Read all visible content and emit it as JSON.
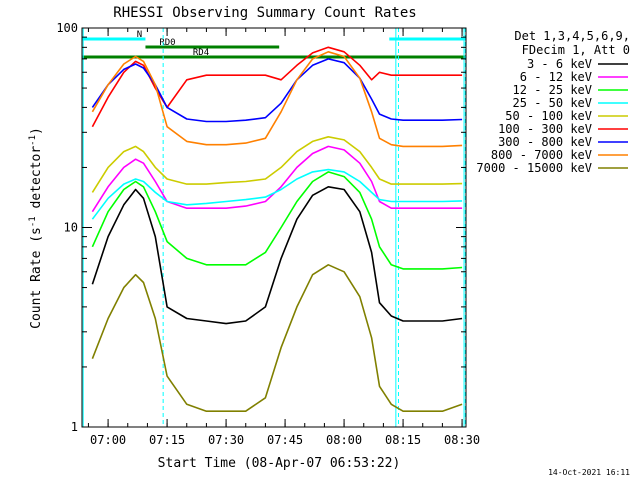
{
  "chart_data": {
    "type": "line",
    "title": "RHESSI Observing Summary Count Rates",
    "xlabel": "Start Time (08-Apr-07 06:53:22)",
    "ylabel_main": "Count Rate (s",
    "ylabel_sup1": "-1",
    "ylabel_mid": " detector",
    "ylabel_sup2": "-1",
    "ylabel_end": ")",
    "y_scale": "log",
    "ylim": [
      1,
      100
    ],
    "xlim": [
      "06:53:22",
      "08:31:00"
    ],
    "x_ticks": [
      "07:00",
      "07:15",
      "07:30",
      "07:45",
      "08:00",
      "08:15",
      "08:30"
    ],
    "y_ticks": [
      "100",
      "10",
      "1"
    ],
    "legend_header": [
      "Det 1,3,4,5,6,9,",
      "FDecim 1, Att 0"
    ],
    "legend_position": "right",
    "timestamp": "14-Oct-2021 16:11",
    "flags": [
      {
        "label": "N",
        "color": "#00ffff",
        "segments": [
          [
            "06:53:22",
            "07:09:30"
          ],
          [
            "08:11:30",
            "08:31:00"
          ]
        ]
      },
      {
        "label": "RD0",
        "color": "#008000",
        "segments": [
          [
            "07:09:30",
            "07:43:30"
          ]
        ]
      },
      {
        "label": "RD4",
        "color": "#008000",
        "segments": [
          [
            "06:53:22",
            "08:31:00"
          ]
        ]
      }
    ],
    "vertical_markers": {
      "night_solid": [
        "06:53:40",
        "08:13:10",
        "08:30:30"
      ],
      "night_dashed": [
        "07:14:00",
        "08:13:50",
        "08:30:50"
      ]
    },
    "series": [
      {
        "name": "3 - 6 keV",
        "color": "#000000",
        "x": [
          "06:56",
          "07:00",
          "07:04",
          "07:07",
          "07:09",
          "07:12",
          "07:15",
          "07:20",
          "07:25",
          "07:30",
          "07:35",
          "07:40",
          "07:44",
          "07:48",
          "07:52",
          "07:56",
          "08:00",
          "08:04",
          "08:07",
          "08:09",
          "08:12",
          "08:15",
          "08:20",
          "08:25",
          "08:30"
        ],
        "values": [
          5.2,
          9,
          13,
          15.5,
          14,
          9,
          4,
          3.5,
          3.4,
          3.3,
          3.4,
          4,
          7,
          11,
          14.5,
          16,
          15.5,
          12,
          7.5,
          4.2,
          3.6,
          3.4,
          3.4,
          3.4,
          3.5
        ]
      },
      {
        "name": "6 - 12 keV",
        "color": "#ff00ff",
        "x": [
          "06:56",
          "07:00",
          "07:04",
          "07:07",
          "07:09",
          "07:12",
          "07:15",
          "07:20",
          "07:25",
          "07:30",
          "07:35",
          "07:40",
          "07:44",
          "07:48",
          "07:52",
          "07:56",
          "08:00",
          "08:04",
          "08:07",
          "08:09",
          "08:12",
          "08:15",
          "08:20",
          "08:25",
          "08:30"
        ],
        "values": [
          12,
          16,
          20,
          22,
          21,
          17,
          13.5,
          12.5,
          12.5,
          12.5,
          12.8,
          13.5,
          16,
          20,
          23.5,
          25.5,
          24.5,
          21,
          17,
          13.5,
          12.5,
          12.5,
          12.5,
          12.5,
          12.5
        ]
      },
      {
        "name": "12 - 25 keV",
        "color": "#00ff00",
        "x": [
          "06:56",
          "07:00",
          "07:04",
          "07:07",
          "07:09",
          "07:12",
          "07:15",
          "07:20",
          "07:25",
          "07:30",
          "07:35",
          "07:40",
          "07:44",
          "07:48",
          "07:52",
          "07:56",
          "08:00",
          "08:04",
          "08:07",
          "08:09",
          "08:12",
          "08:15",
          "08:20",
          "08:25",
          "08:30"
        ],
        "values": [
          8,
          12,
          15.5,
          17,
          16,
          12,
          8.5,
          7,
          6.5,
          6.5,
          6.5,
          7.5,
          10,
          13.5,
          17,
          19,
          18,
          15,
          11,
          8,
          6.5,
          6.2,
          6.2,
          6.2,
          6.3
        ]
      },
      {
        "name": "25 - 50 keV",
        "color": "#00ffff",
        "x": [
          "06:56",
          "07:00",
          "07:04",
          "07:07",
          "07:09",
          "07:12",
          "07:15",
          "07:20",
          "07:25",
          "07:30",
          "07:35",
          "07:40",
          "07:44",
          "07:48",
          "07:52",
          "07:56",
          "08:00",
          "08:04",
          "08:07",
          "08:09",
          "08:12",
          "08:15",
          "08:20",
          "08:25",
          "08:30"
        ],
        "values": [
          11,
          14,
          16.5,
          17.5,
          17,
          15,
          13.5,
          13,
          13.2,
          13.5,
          13.8,
          14.2,
          15.5,
          17.5,
          19,
          19.5,
          19,
          17,
          15,
          13.8,
          13.5,
          13.5,
          13.5,
          13.5,
          13.6
        ]
      },
      {
        "name": "50 - 100 keV",
        "color": "#cccc00",
        "x": [
          "06:56",
          "07:00",
          "07:04",
          "07:07",
          "07:09",
          "07:12",
          "07:15",
          "07:20",
          "07:25",
          "07:30",
          "07:35",
          "07:40",
          "07:44",
          "07:48",
          "07:52",
          "07:56",
          "08:00",
          "08:04",
          "08:07",
          "08:09",
          "08:12",
          "08:15",
          "08:20",
          "08:25",
          "08:30"
        ],
        "values": [
          15,
          20,
          24,
          25.5,
          24,
          20,
          17.5,
          16.5,
          16.5,
          16.8,
          17,
          17.5,
          20,
          24,
          27,
          28.5,
          27.5,
          24,
          20,
          17.5,
          16.5,
          16.5,
          16.5,
          16.5,
          16.6
        ]
      },
      {
        "name": "100 - 300 keV",
        "color": "#ff0000",
        "x": [
          "06:56",
          "07:00",
          "07:04",
          "07:07",
          "07:09",
          "07:12",
          "07:15",
          "07:20",
          "07:25",
          "07:30",
          "07:35",
          "07:40",
          "07:44",
          "07:48",
          "07:52",
          "07:56",
          "08:00",
          "08:04",
          "08:07",
          "08:09",
          "08:12",
          "08:15",
          "08:20",
          "08:25",
          "08:30"
        ],
        "values": [
          32,
          45,
          60,
          68,
          65,
          50,
          40,
          55,
          58,
          58,
          58,
          58,
          55,
          65,
          75,
          80,
          76,
          65,
          55,
          60,
          58,
          58,
          58,
          58,
          58
        ]
      },
      {
        "name": "300 - 800 keV",
        "color": "#0000ff",
        "x": [
          "06:56",
          "07:00",
          "07:04",
          "07:07",
          "07:09",
          "07:12",
          "07:15",
          "07:20",
          "07:25",
          "07:30",
          "07:35",
          "07:40",
          "07:44",
          "07:48",
          "07:52",
          "07:56",
          "08:00",
          "08:04",
          "08:07",
          "08:09",
          "08:12",
          "08:15",
          "08:20",
          "08:25",
          "08:30"
        ],
        "values": [
          40,
          52,
          62,
          66,
          63,
          52,
          40,
          35,
          34,
          34,
          34.5,
          35.5,
          42,
          55,
          65,
          70,
          67,
          56,
          44,
          37,
          35,
          34.5,
          34.5,
          34.5,
          34.8
        ]
      },
      {
        "name": "800 - 7000 keV",
        "color": "#ff8000",
        "x": [
          "06:56",
          "07:00",
          "07:04",
          "07:07",
          "07:09",
          "07:12",
          "07:15",
          "07:20",
          "07:25",
          "07:30",
          "07:35",
          "07:40",
          "07:44",
          "07:48",
          "07:52",
          "07:56",
          "08:00",
          "08:04",
          "08:07",
          "08:09",
          "08:12",
          "08:15",
          "08:20",
          "08:25",
          "08:30"
        ],
        "values": [
          38,
          52,
          66,
          72,
          68,
          52,
          32,
          27,
          26,
          26,
          26.5,
          28,
          38,
          55,
          70,
          76,
          72,
          56,
          38,
          28,
          26,
          25.5,
          25.5,
          25.5,
          25.8
        ]
      },
      {
        "name": "7000 - 15000 keV",
        "color": "#808000",
        "x": [
          "06:56",
          "07:00",
          "07:04",
          "07:07",
          "07:09",
          "07:12",
          "07:15",
          "07:20",
          "07:25",
          "07:30",
          "07:35",
          "07:40",
          "07:44",
          "07:48",
          "07:52",
          "07:56",
          "08:00",
          "08:04",
          "08:07",
          "08:09",
          "08:12",
          "08:15",
          "08:20",
          "08:25",
          "08:30"
        ],
        "values": [
          2.2,
          3.5,
          5,
          5.8,
          5.3,
          3.5,
          1.8,
          1.3,
          1.2,
          1.2,
          1.2,
          1.4,
          2.5,
          4,
          5.8,
          6.5,
          6,
          4.5,
          2.8,
          1.6,
          1.3,
          1.2,
          1.2,
          1.2,
          1.3
        ]
      }
    ]
  }
}
